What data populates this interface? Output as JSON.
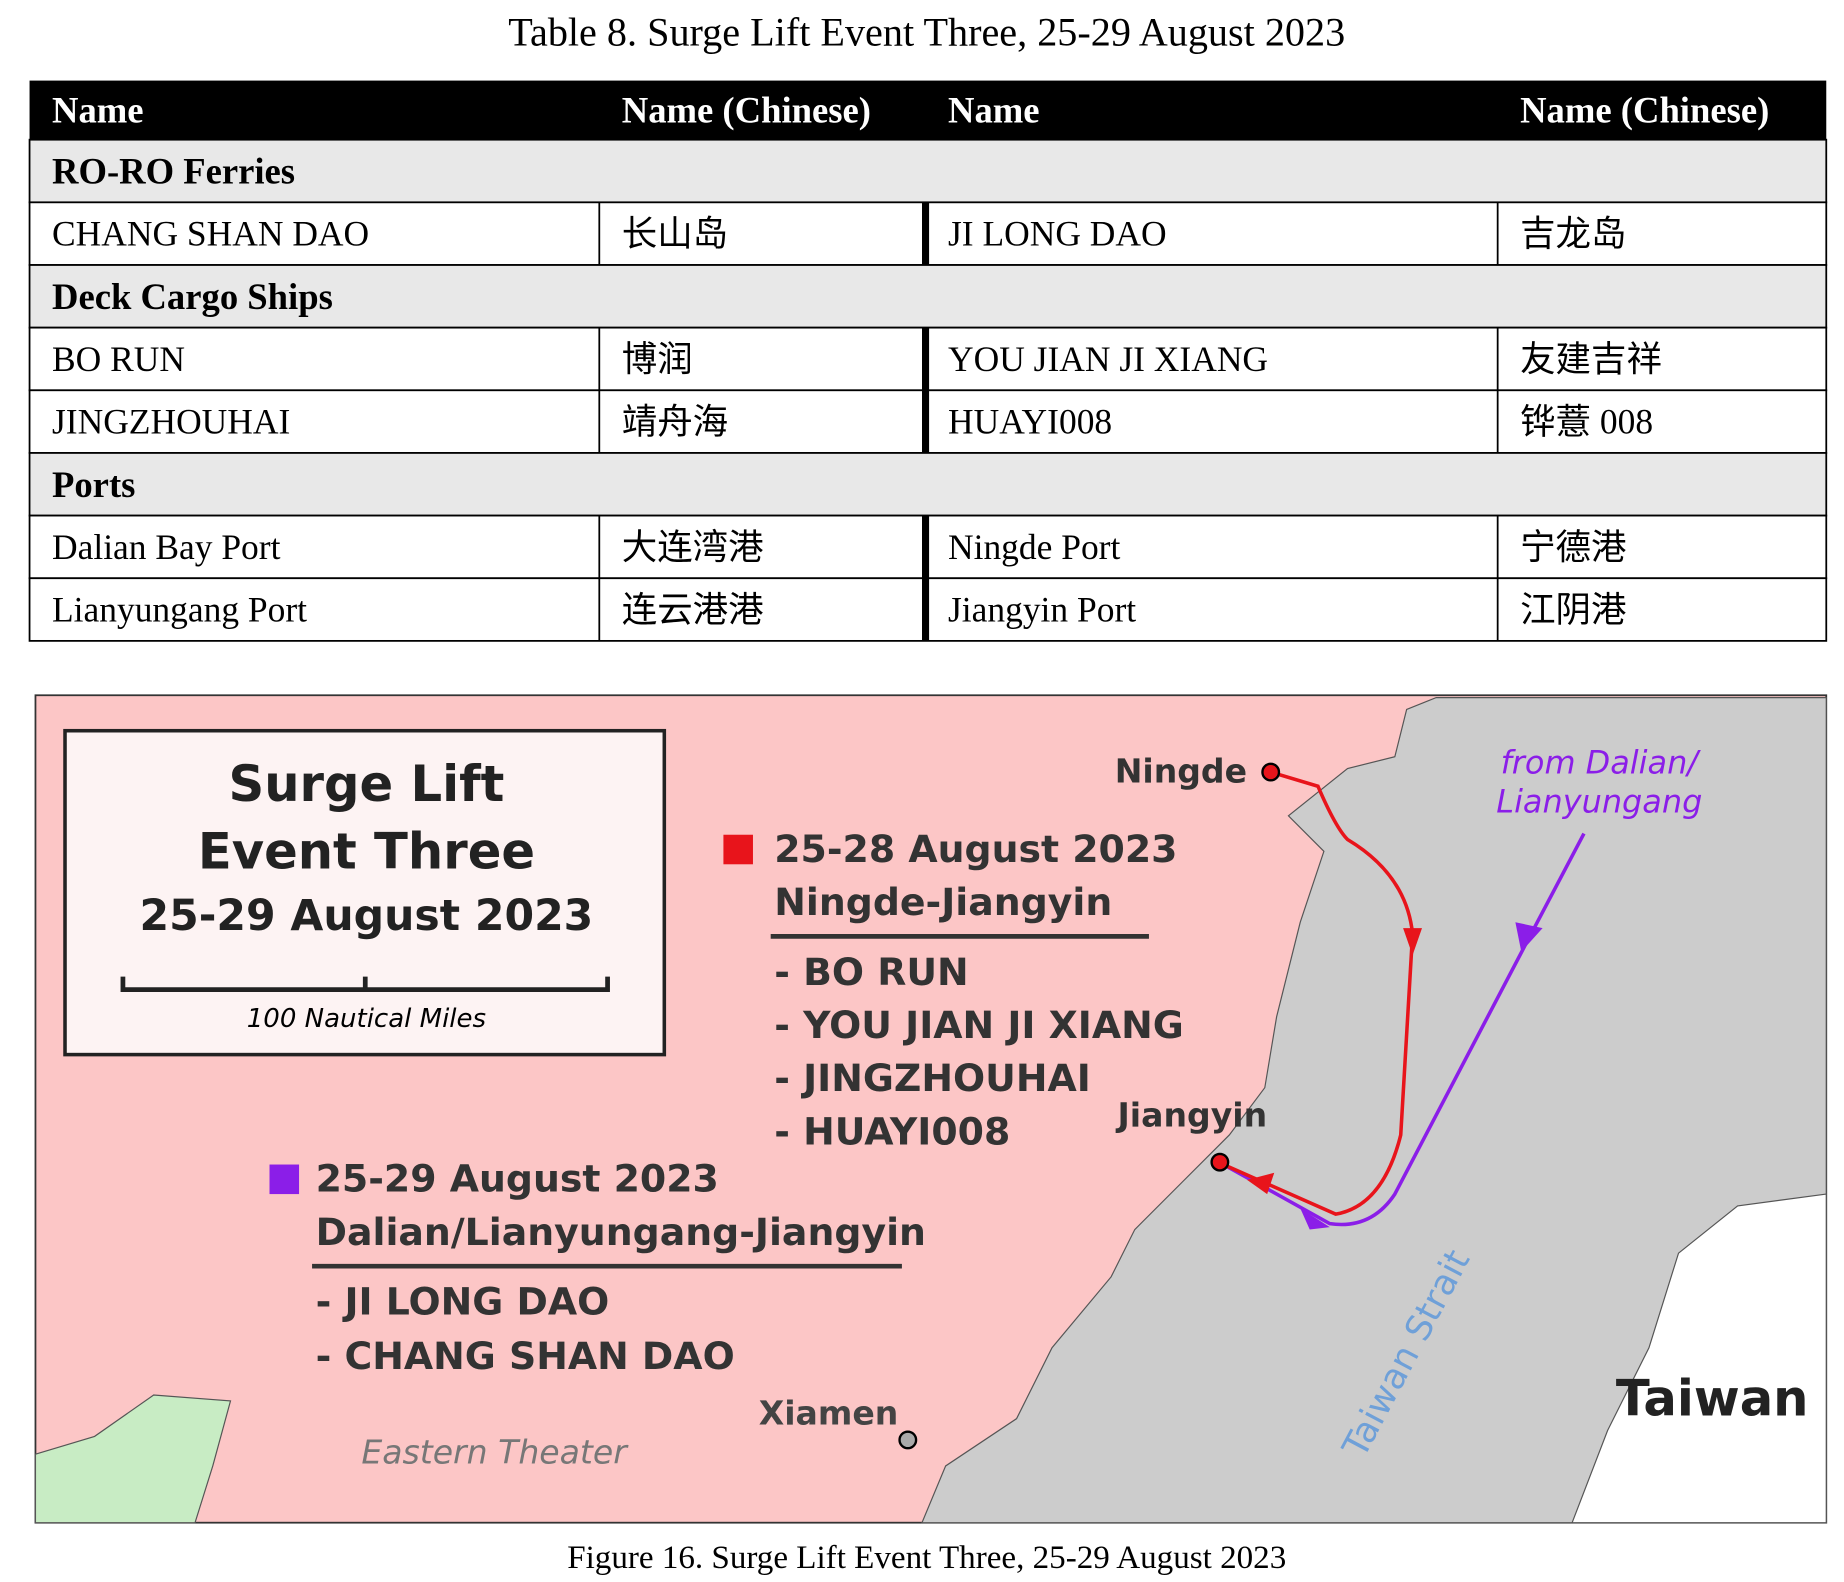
{
  "table": {
    "caption": "Table 8. Surge Lift Event Three, 25-29 August 2023",
    "header": [
      "Name",
      "Name (Chinese)",
      "Name",
      "Name (Chinese)"
    ],
    "sections": [
      {
        "title": "RO-RO Ferries",
        "rows": [
          [
            "CHANG SHAN DAO",
            "长山岛",
            "JI LONG DAO",
            "吉龙岛"
          ]
        ]
      },
      {
        "title": "Deck Cargo Ships",
        "rows": [
          [
            "BO RUN",
            "博润",
            "YOU JIAN JI XIANG",
            "友建吉祥"
          ],
          [
            "JINGZHOUHAI",
            "靖舟海",
            "HUAYI008",
            "铧薏 008"
          ]
        ]
      },
      {
        "title": "Ports",
        "rows": [
          [
            "Dalian Bay Port",
            "大连湾港",
            "Ningde Port",
            "宁德港"
          ],
          [
            "Lianyungang Port",
            "连云港港",
            "Jiangyin Port",
            "江阴港"
          ]
        ]
      }
    ]
  },
  "figure": {
    "box_title": [
      "Surge Lift",
      "Event Three",
      "25-29 August 2023"
    ],
    "scale_label": "100 Nautical Miles",
    "legend": [
      {
        "date": "25-28 August 2023",
        "route": "Ningde-Jiangyin",
        "color": "#e8141b",
        "ships": [
          "- BO RUN",
          "- YOU JIAN JI XIANG",
          "- JINGZHOUHAI",
          "- HUAYI008"
        ]
      },
      {
        "date": "25-29 August 2023",
        "route": "Dalian/Lianyungang-Jiangyin",
        "color": "#8b1ee8",
        "ships": [
          "- JI LONG DAO",
          "- CHANG SHAN DAO"
        ]
      }
    ],
    "places": {
      "ningde": "Ningde",
      "jiangyin": "Jiangyin",
      "xiamen": "Xiamen",
      "theater": "Eastern Theater",
      "taiwan": "Taiwan",
      "strait": "Taiwan Strait",
      "origin": [
        "from Dalian/",
        "Lianyungang"
      ]
    },
    "caption": "Figure 16. Surge Lift Event Three, 25-29 August 2023"
  }
}
